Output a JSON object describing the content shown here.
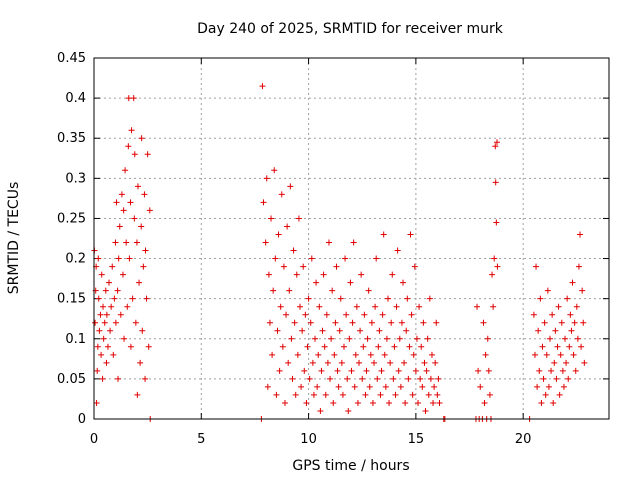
{
  "chart_data": {
    "type": "scatter",
    "title": "Day 240 of 2025, SRMTID for receiver murk",
    "xlabel": "GPS time / hours",
    "ylabel": "SRMTID / TECUs",
    "xlim": [
      0,
      24
    ],
    "ylim": [
      0,
      0.45
    ],
    "xticks": [
      0,
      5,
      10,
      15,
      20
    ],
    "xtick_labels": [
      "0",
      "5",
      "10",
      "15",
      "20"
    ],
    "yticks": [
      0,
      0.05,
      0.1,
      0.15,
      0.2,
      0.25,
      0.3,
      0.35,
      0.4,
      0.45
    ],
    "ytick_labels": [
      "0",
      "0.05",
      "0.1",
      "0.15",
      "0.2",
      "0.25",
      "0.3",
      "0.35",
      "0.4",
      "0.45"
    ],
    "grid": true,
    "marker": "plus",
    "marker_color": "#e00000",
    "series": [
      {
        "points": [
          [
            0.02,
            0.21
          ],
          [
            0.05,
            0.12
          ],
          [
            0.08,
            0.16
          ],
          [
            0.1,
            0.19
          ],
          [
            0.12,
            0.02
          ],
          [
            0.15,
            0.06
          ],
          [
            0.18,
            0.09
          ],
          [
            0.2,
            0.2
          ],
          [
            0.22,
            0.15
          ],
          [
            0.25,
            0.11
          ],
          [
            0.3,
            0.13
          ],
          [
            0.33,
            0.08
          ],
          [
            0.36,
            0.18
          ],
          [
            0.4,
            0.05
          ],
          [
            0.42,
            0.14
          ],
          [
            0.45,
            0.1
          ],
          [
            0.5,
            0.12
          ],
          [
            0.55,
            0.16
          ],
          [
            0.58,
            0.07
          ],
          [
            0.6,
            0.13
          ],
          [
            0.65,
            0.09
          ],
          [
            0.7,
            0.17
          ],
          [
            0.75,
            0.11
          ],
          [
            0.8,
            0.14
          ],
          [
            0.85,
            0.19
          ],
          [
            0.9,
            0.08
          ],
          [
            0.95,
            0.15
          ],
          [
            1.0,
            0.22
          ],
          [
            1.02,
            0.12
          ],
          [
            1.05,
            0.27
          ],
          [
            1.1,
            0.16
          ],
          [
            1.12,
            0.05
          ],
          [
            1.15,
            0.2
          ],
          [
            1.2,
            0.24
          ],
          [
            1.25,
            0.13
          ],
          [
            1.3,
            0.28
          ],
          [
            1.35,
            0.18
          ],
          [
            1.38,
            0.26
          ],
          [
            1.4,
            0.1
          ],
          [
            1.45,
            0.31
          ],
          [
            1.5,
            0.22
          ],
          [
            1.55,
            0.14
          ],
          [
            1.6,
            0.34
          ],
          [
            1.62,
            0.4
          ],
          [
            1.65,
            0.2
          ],
          [
            1.7,
            0.27
          ],
          [
            1.72,
            0.09
          ],
          [
            1.75,
            0.36
          ],
          [
            1.8,
            0.15
          ],
          [
            1.85,
            0.4
          ],
          [
            1.88,
            0.25
          ],
          [
            1.9,
            0.33
          ],
          [
            1.95,
            0.12
          ],
          [
            2.0,
            0.22
          ],
          [
            2.02,
            0.03
          ],
          [
            2.05,
            0.29
          ],
          [
            2.1,
            0.17
          ],
          [
            2.15,
            0.07
          ],
          [
            2.2,
            0.24
          ],
          [
            2.22,
            0.35
          ],
          [
            2.25,
            0.11
          ],
          [
            2.3,
            0.19
          ],
          [
            2.35,
            0.28
          ],
          [
            2.38,
            0.05
          ],
          [
            2.4,
            0.21
          ],
          [
            2.45,
            0.15
          ],
          [
            2.5,
            0.33
          ],
          [
            2.55,
            0.09
          ],
          [
            2.6,
            0.26
          ],
          [
            2.62,
            0.0
          ],
          [
            7.8,
            0.0
          ],
          [
            7.85,
            0.415
          ],
          [
            7.9,
            0.27
          ],
          [
            8.0,
            0.22
          ],
          [
            8.05,
            0.3
          ],
          [
            8.1,
            0.04
          ],
          [
            8.15,
            0.18
          ],
          [
            8.2,
            0.12
          ],
          [
            8.25,
            0.25
          ],
          [
            8.3,
            0.08
          ],
          [
            8.35,
            0.16
          ],
          [
            8.4,
            0.31
          ],
          [
            8.45,
            0.2
          ],
          [
            8.5,
            0.03
          ],
          [
            8.55,
            0.11
          ],
          [
            8.6,
            0.23
          ],
          [
            8.65,
            0.06
          ],
          [
            8.7,
            0.14
          ],
          [
            8.75,
            0.28
          ],
          [
            8.8,
            0.09
          ],
          [
            8.85,
            0.19
          ],
          [
            8.9,
            0.02
          ],
          [
            8.95,
            0.13
          ],
          [
            9.0,
            0.24
          ],
          [
            9.05,
            0.07
          ],
          [
            9.1,
            0.16
          ],
          [
            9.15,
            0.29
          ],
          [
            9.2,
            0.1
          ],
          [
            9.25,
            0.05
          ],
          [
            9.3,
            0.21
          ],
          [
            9.35,
            0.12
          ],
          [
            9.4,
            0.03
          ],
          [
            9.45,
            0.18
          ],
          [
            9.5,
            0.08
          ],
          [
            9.55,
            0.25
          ],
          [
            9.6,
            0.14
          ],
          [
            9.65,
            0.04
          ],
          [
            9.7,
            0.11
          ],
          [
            9.75,
            0.19
          ],
          [
            9.8,
            0.06
          ],
          [
            9.85,
            0.13
          ],
          [
            9.9,
            0.02
          ],
          [
            9.95,
            0.09
          ],
          [
            10.0,
            0.15
          ],
          [
            10.05,
            0.05
          ],
          [
            10.1,
            0.12
          ],
          [
            10.15,
            0.2
          ],
          [
            10.2,
            0.07
          ],
          [
            10.25,
            0.03
          ],
          [
            10.3,
            0.1
          ],
          [
            10.35,
            0.17
          ],
          [
            10.4,
            0.04
          ],
          [
            10.45,
            0.08
          ],
          [
            10.5,
            0.14
          ],
          [
            10.55,
            0.01
          ],
          [
            10.6,
            0.06
          ],
          [
            10.65,
            0.11
          ],
          [
            10.7,
            0.18
          ],
          [
            10.75,
            0.09
          ],
          [
            10.8,
            0.03
          ],
          [
            10.85,
            0.13
          ],
          [
            10.9,
            0.07
          ],
          [
            10.95,
            0.22
          ],
          [
            11.0,
            0.05
          ],
          [
            11.05,
            0.1
          ],
          [
            11.1,
            0.16
          ],
          [
            11.15,
            0.02
          ],
          [
            11.2,
            0.08
          ],
          [
            11.25,
            0.12
          ],
          [
            11.3,
            0.19
          ],
          [
            11.35,
            0.06
          ],
          [
            11.4,
            0.04
          ],
          [
            11.45,
            0.11
          ],
          [
            11.5,
            0.15
          ],
          [
            11.55,
            0.07
          ],
          [
            11.6,
            0.03
          ],
          [
            11.65,
            0.09
          ],
          [
            11.7,
            0.2
          ],
          [
            11.75,
            0.13
          ],
          [
            11.8,
            0.05
          ],
          [
            11.85,
            0.01
          ],
          [
            11.9,
            0.1
          ],
          [
            11.95,
            0.17
          ],
          [
            12.0,
            0.06
          ],
          [
            12.05,
            0.12
          ],
          [
            12.1,
            0.22
          ],
          [
            12.15,
            0.04
          ],
          [
            12.2,
            0.08
          ],
          [
            12.25,
            0.14
          ],
          [
            12.3,
            0.02
          ],
          [
            12.35,
            0.07
          ],
          [
            12.4,
            0.11
          ],
          [
            12.45,
            0.18
          ],
          [
            12.5,
            0.05
          ],
          [
            12.55,
            0.09
          ],
          [
            12.6,
            0.13
          ],
          [
            12.65,
            0.03
          ],
          [
            12.7,
            0.06
          ],
          [
            12.75,
            0.1
          ],
          [
            12.8,
            0.16
          ],
          [
            12.85,
            0.04
          ],
          [
            12.9,
            0.08
          ],
          [
            12.95,
            0.12
          ],
          [
            13.0,
            0.02
          ],
          [
            13.05,
            0.07
          ],
          [
            13.1,
            0.14
          ],
          [
            13.15,
            0.2
          ],
          [
            13.2,
            0.05
          ],
          [
            13.25,
            0.09
          ],
          [
            13.3,
            0.11
          ],
          [
            13.35,
            0.03
          ],
          [
            13.4,
            0.06
          ],
          [
            13.45,
            0.13
          ],
          [
            13.5,
            0.23
          ],
          [
            13.55,
            0.08
          ],
          [
            13.6,
            0.04
          ],
          [
            13.65,
            0.1
          ],
          [
            13.7,
            0.15
          ],
          [
            13.75,
            0.02
          ],
          [
            13.8,
            0.07
          ],
          [
            13.85,
            0.12
          ],
          [
            13.9,
            0.18
          ],
          [
            13.95,
            0.05
          ],
          [
            14.0,
            0.09
          ],
          [
            14.05,
            0.03
          ],
          [
            14.1,
            0.14
          ],
          [
            14.15,
            0.21
          ],
          [
            14.2,
            0.06
          ],
          [
            14.25,
            0.1
          ],
          [
            14.3,
            0.04
          ],
          [
            14.35,
            0.12
          ],
          [
            14.4,
            0.17
          ],
          [
            14.45,
            0.07
          ],
          [
            14.5,
            0.02
          ],
          [
            14.55,
            0.11
          ],
          [
            14.6,
            0.15
          ],
          [
            14.65,
            0.05
          ],
          [
            14.7,
            0.09
          ],
          [
            14.75,
            0.23
          ],
          [
            14.8,
            0.13
          ],
          [
            14.85,
            0.03
          ],
          [
            14.9,
            0.08
          ],
          [
            14.95,
            0.19
          ],
          [
            15.0,
            0.06
          ],
          [
            15.05,
            0.1
          ],
          [
            15.1,
            0.02
          ],
          [
            15.15,
            0.14
          ],
          [
            15.2,
            0.05
          ],
          [
            15.25,
            0.09
          ],
          [
            15.3,
            0.04
          ],
          [
            15.35,
            0.12
          ],
          [
            15.4,
            0.07
          ],
          [
            15.45,
            0.01
          ],
          [
            15.5,
            0.06
          ],
          [
            15.55,
            0.1
          ],
          [
            15.6,
            0.03
          ],
          [
            15.65,
            0.15
          ],
          [
            15.7,
            0.05
          ],
          [
            15.75,
            0.08
          ],
          [
            15.8,
            0.02
          ],
          [
            15.85,
            0.04
          ],
          [
            15.9,
            0.07
          ],
          [
            15.95,
            0.12
          ],
          [
            16.0,
            0.03
          ],
          [
            16.05,
            0.05
          ],
          [
            16.1,
            0.02
          ],
          [
            16.3,
            0.0
          ],
          [
            16.35,
            0.0
          ],
          [
            17.8,
            0.0
          ],
          [
            17.85,
            0.14
          ],
          [
            17.9,
            0.06
          ],
          [
            17.95,
            0.0
          ],
          [
            18.0,
            0.04
          ],
          [
            18.1,
            0.0
          ],
          [
            18.15,
            0.12
          ],
          [
            18.2,
            0.02
          ],
          [
            18.25,
            0.08
          ],
          [
            18.3,
            0.0
          ],
          [
            18.35,
            0.1
          ],
          [
            18.4,
            0.06
          ],
          [
            18.45,
            0.03
          ],
          [
            18.5,
            0.0
          ],
          [
            18.55,
            0.18
          ],
          [
            18.6,
            0.14
          ],
          [
            18.65,
            0.2
          ],
          [
            18.7,
            0.34
          ],
          [
            18.72,
            0.295
          ],
          [
            18.75,
            0.245
          ],
          [
            18.78,
            0.345
          ],
          [
            18.8,
            0.19
          ],
          [
            20.3,
            0.0
          ],
          [
            20.5,
            0.13
          ],
          [
            20.55,
            0.08
          ],
          [
            20.6,
            0.19
          ],
          [
            20.65,
            0.04
          ],
          [
            20.7,
            0.11
          ],
          [
            20.75,
            0.06
          ],
          [
            20.8,
            0.15
          ],
          [
            20.85,
            0.02
          ],
          [
            20.9,
            0.09
          ],
          [
            20.95,
            0.05
          ],
          [
            21.0,
            0.12
          ],
          [
            21.05,
            0.03
          ],
          [
            21.1,
            0.08
          ],
          [
            21.15,
            0.16
          ],
          [
            21.2,
            0.04
          ],
          [
            21.25,
            0.1
          ],
          [
            21.3,
            0.06
          ],
          [
            21.35,
            0.13
          ],
          [
            21.4,
            0.02
          ],
          [
            21.45,
            0.07
          ],
          [
            21.5,
            0.11
          ],
          [
            21.55,
            0.05
          ],
          [
            21.6,
            0.09
          ],
          [
            21.65,
            0.14
          ],
          [
            21.7,
            0.03
          ],
          [
            21.75,
            0.08
          ],
          [
            21.8,
            0.12
          ],
          [
            21.85,
            0.06
          ],
          [
            21.9,
            0.04
          ],
          [
            21.95,
            0.1
          ],
          [
            22.0,
            0.07
          ],
          [
            22.05,
            0.15
          ],
          [
            22.1,
            0.05
          ],
          [
            22.15,
            0.09
          ],
          [
            22.2,
            0.13
          ],
          [
            22.25,
            0.11
          ],
          [
            22.3,
            0.17
          ],
          [
            22.35,
            0.08
          ],
          [
            22.4,
            0.12
          ],
          [
            22.45,
            0.06
          ],
          [
            22.5,
            0.14
          ],
          [
            22.55,
            0.1
          ],
          [
            22.6,
            0.19
          ],
          [
            22.65,
            0.23
          ],
          [
            22.7,
            0.09
          ],
          [
            22.75,
            0.16
          ],
          [
            22.8,
            0.12
          ],
          [
            22.85,
            0.07
          ]
        ]
      }
    ]
  }
}
